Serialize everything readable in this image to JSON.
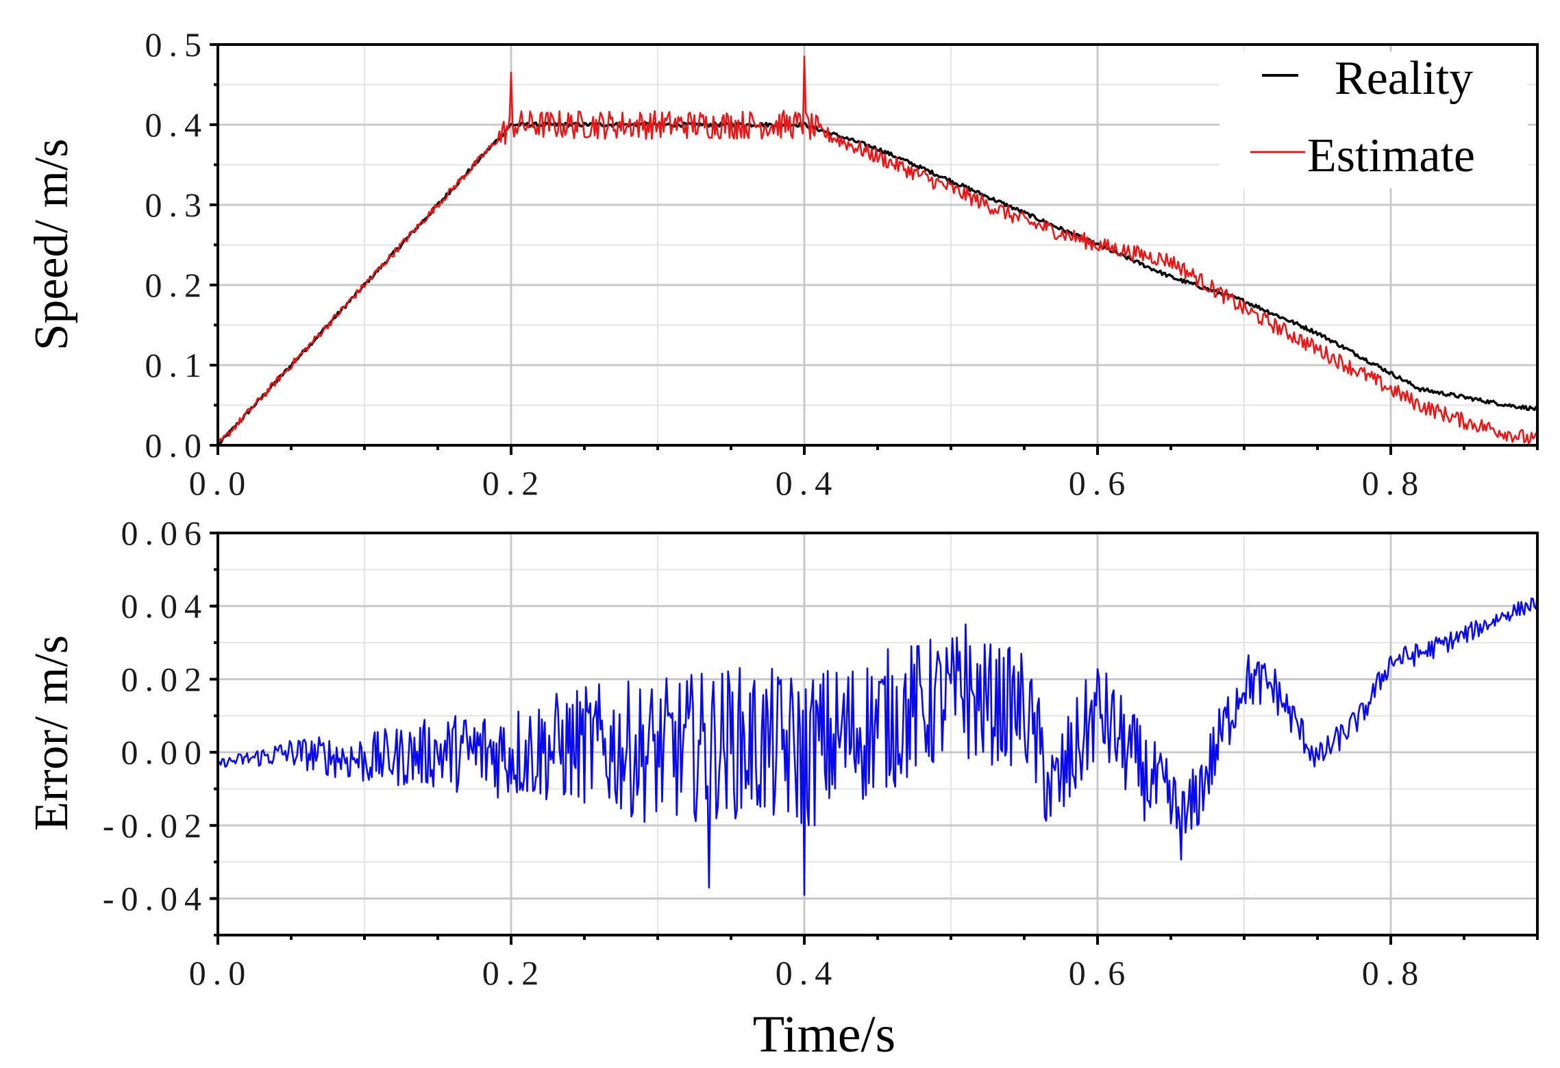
{
  "figure": {
    "xlabel": "Time/s"
  },
  "colors": {
    "reality": "#000000",
    "estimate": "#e81818",
    "error": "#0a0aee"
  },
  "chart_data": [
    {
      "type": "line",
      "title": "",
      "xlabel": "",
      "ylabel": "Speed/ m/s",
      "xlim": [
        0.0,
        0.9
      ],
      "ylim": [
        0.0,
        0.5
      ],
      "xticks": [
        0.0,
        0.2,
        0.4,
        0.6,
        0.8
      ],
      "xtick_labels": [
        "0.0",
        "0.2",
        "0.4",
        "0.6",
        "0.8"
      ],
      "yticks": [
        0.0,
        0.1,
        0.2,
        0.3,
        0.4,
        0.5
      ],
      "ytick_labels": [
        "0.0",
        "0.1",
        "0.2",
        "0.3",
        "0.4",
        "0.5"
      ],
      "grid": true,
      "legend": "top-right",
      "series": [
        {
          "name": "Reality",
          "color": "#000000",
          "x": [
            0.0,
            0.2,
            0.4,
            0.45,
            0.5,
            0.55,
            0.6,
            0.65,
            0.7,
            0.75,
            0.8,
            0.82,
            0.85,
            0.88,
            0.9
          ],
          "y": [
            0.0,
            0.4,
            0.4,
            0.37,
            0.33,
            0.29,
            0.25,
            0.21,
            0.18,
            0.14,
            0.09,
            0.07,
            0.06,
            0.05,
            0.045
          ]
        },
        {
          "name": "Estimate",
          "color": "#e81818",
          "x": [
            0.0,
            0.2,
            0.4,
            0.45,
            0.5,
            0.55,
            0.6,
            0.65,
            0.7,
            0.75,
            0.8,
            0.82,
            0.85,
            0.88,
            0.9
          ],
          "y": [
            0.0,
            0.4,
            0.4,
            0.36,
            0.32,
            0.28,
            0.25,
            0.23,
            0.17,
            0.12,
            0.07,
            0.05,
            0.03,
            0.015,
            0.005
          ],
          "noise_amplitude": 0.018,
          "spikes": [
            {
              "x": 0.2,
              "y": 0.465
            },
            {
              "x": 0.4,
              "y": 0.485
            }
          ]
        }
      ]
    },
    {
      "type": "line",
      "title": "",
      "xlabel": "Time/s",
      "ylabel": "Error/ m/s",
      "xlim": [
        0.0,
        0.9
      ],
      "ylim": [
        -0.05,
        0.06
      ],
      "xticks": [
        0.0,
        0.2,
        0.4,
        0.6,
        0.8
      ],
      "xtick_labels": [
        "0.0",
        "0.2",
        "0.4",
        "0.6",
        "0.8"
      ],
      "yticks": [
        -0.04,
        -0.02,
        0.0,
        0.02,
        0.04,
        0.06
      ],
      "ytick_labels": [
        "-0.04",
        "-0.02",
        "0.00",
        "0.02",
        "0.04",
        "0.06"
      ],
      "grid": true,
      "legend": "none",
      "series": [
        {
          "name": "Error",
          "color": "#0a0aee",
          "x": [
            0.0,
            0.05,
            0.1,
            0.15,
            0.2,
            0.25,
            0.3,
            0.35,
            0.4,
            0.45,
            0.5,
            0.55,
            0.57,
            0.6,
            0.63,
            0.66,
            0.7,
            0.72,
            0.75,
            0.78,
            0.8,
            0.82,
            0.85,
            0.88,
            0.9
          ],
          "y": [
            -0.003,
            0.0,
            -0.002,
            0.0,
            0.0,
            0.002,
            0.0,
            0.003,
            0.0,
            0.008,
            0.015,
            0.012,
            -0.012,
            0.012,
            -0.005,
            -0.02,
            0.02,
            0.018,
            -0.002,
            0.01,
            0.025,
            0.027,
            0.032,
            0.038,
            0.041
          ],
          "noise_amplitude_by_x": [
            [
              0.0,
              0.001
            ],
            [
              0.05,
              0.004
            ],
            [
              0.15,
              0.01
            ],
            [
              0.3,
              0.02
            ],
            [
              0.4,
              0.022
            ],
            [
              0.55,
              0.016
            ],
            [
              0.65,
              0.012
            ],
            [
              0.75,
              0.004
            ],
            [
              0.9,
              0.002
            ]
          ],
          "spikes": [
            {
              "x": 0.335,
              "y": -0.037
            },
            {
              "x": 0.4,
              "y": -0.039
            },
            {
              "x": 0.51,
              "y": 0.035
            },
            {
              "x": 0.9,
              "y": 0.043
            }
          ]
        }
      ]
    }
  ]
}
